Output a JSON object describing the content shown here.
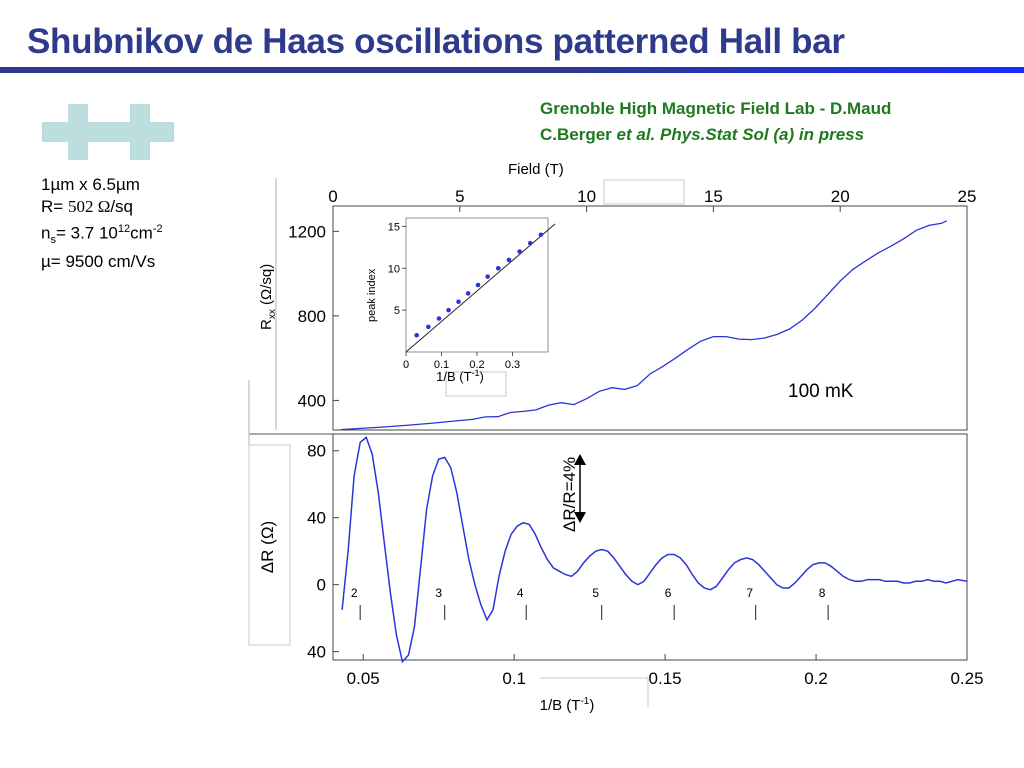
{
  "slide": {
    "title": "Shubnikov de Haas oscillations patterned Hall bar",
    "reference_line1": "Grenoble High Magnetic Field Lab - D.Maud",
    "reference_line2_plain": "C.Berger ",
    "reference_line2_italic": "et al. Phys.Stat Sol (a) in press",
    "accent_color": "#2e3a8c",
    "reference_color": "#1f7a1f"
  },
  "sample": {
    "size": "1µm x 6.5µm",
    "resistance_prefix": "R= ",
    "resistance_value": "502 Ω",
    "resistance_unit": "/sq",
    "density_label_main": "n",
    "density_label_sub": "s",
    "density_value": "= 3.7 10",
    "density_exp": "12",
    "density_unit": "cm",
    "density_unit_exp": "-2",
    "mobility": "µ= 9500 cm/Vs"
  },
  "chart_data": [
    {
      "name": "top",
      "type": "line",
      "xlabel": "Field (T)",
      "ylabel": "Rxx (Ω/sq)",
      "xlim": [
        0,
        25
      ],
      "ylim": [
        260,
        1320
      ],
      "xticks": [
        0,
        5,
        10,
        15,
        20,
        25
      ],
      "yticks": [
        400,
        800,
        1200
      ],
      "annotation": "100 mK",
      "series": [
        {
          "color": "#2a35d8",
          "points": [
            [
              0.3,
              262
            ],
            [
              1,
              267
            ],
            [
              2,
              274
            ],
            [
              3,
              283
            ],
            [
              4,
              293
            ],
            [
              5,
              305
            ],
            [
              5.5,
              310
            ],
            [
              6,
              322
            ],
            [
              6.5,
              323
            ],
            [
              7,
              343
            ],
            [
              7.5,
              348
            ],
            [
              8,
              355
            ],
            [
              8.5,
              378
            ],
            [
              9,
              389
            ],
            [
              9.5,
              380
            ],
            [
              10,
              408
            ],
            [
              10.5,
              443
            ],
            [
              11,
              460
            ],
            [
              11.5,
              452
            ],
            [
              12,
              470
            ],
            [
              12.5,
              525
            ],
            [
              13,
              560
            ],
            [
              13.5,
              600
            ],
            [
              14,
              642
            ],
            [
              14.5,
              680
            ],
            [
              15,
              702
            ],
            [
              15.5,
              702
            ],
            [
              16,
              690
            ],
            [
              16.5,
              688
            ],
            [
              17,
              695
            ],
            [
              17.5,
              712
            ],
            [
              18,
              738
            ],
            [
              18.5,
              780
            ],
            [
              19,
              835
            ],
            [
              19.5,
              900
            ],
            [
              20,
              965
            ],
            [
              20.5,
              1020
            ],
            [
              21,
              1060
            ],
            [
              21.5,
              1098
            ],
            [
              22,
              1130
            ],
            [
              22.5,
              1165
            ],
            [
              23,
              1205
            ],
            [
              23.5,
              1228
            ],
            [
              24,
              1238
            ],
            [
              24.2,
              1250
            ]
          ]
        }
      ]
    },
    {
      "name": "inset",
      "type": "scatter",
      "xlabel": "1/B (T",
      "xlabel_exp": "-1",
      "xlabel_close": ")",
      "ylabel": "peak index",
      "xlim": [
        0,
        0.4
      ],
      "ylim": [
        0,
        16
      ],
      "xticks": [
        0,
        0.1,
        0.2,
        0.3
      ],
      "xtick_labels": [
        "0",
        "0.1",
        "0.2",
        "0.3"
      ],
      "yticks": [
        5,
        10,
        15
      ],
      "series": [
        {
          "points": [
            [
              0.03,
              2
            ],
            [
              0.063,
              3
            ],
            [
              0.093,
              4
            ],
            [
              0.12,
              5
            ],
            [
              0.148,
              6
            ],
            [
              0.175,
              7
            ],
            [
              0.203,
              8
            ],
            [
              0.23,
              9
            ],
            [
              0.26,
              10
            ],
            [
              0.29,
              11
            ],
            [
              0.32,
              12
            ],
            [
              0.35,
              13
            ],
            [
              0.38,
              14
            ],
            [
              0.41,
              15
            ]
          ]
        }
      ],
      "fit": [
        [
          0,
          0
        ],
        [
          0.42,
          15.3
        ]
      ]
    },
    {
      "name": "bottom",
      "type": "line",
      "xlabel": "1/B (T",
      "xlabel_exp": "-1",
      "xlabel_close": ")",
      "ylabel": "ΔR (Ω)",
      "xlim": [
        0.04,
        0.25
      ],
      "ylim": [
        -45,
        90
      ],
      "xticks": [
        0.05,
        0.1,
        0.15,
        0.2,
        0.25
      ],
      "xtick_labels": [
        "0.05",
        "0.1",
        "0.15",
        "0.2",
        "0.25"
      ],
      "yticks": [
        80,
        40,
        0,
        -40
      ],
      "ytick_labels": [
        "80",
        "40",
        "0",
        "40"
      ],
      "scale_annotation": "ΔR/R=4%",
      "peak_labels": [
        {
          "label": "2",
          "x": 0.049
        },
        {
          "label": "3",
          "x": 0.077
        },
        {
          "label": "4",
          "x": 0.104
        },
        {
          "label": "5",
          "x": 0.129
        },
        {
          "label": "6",
          "x": 0.153
        },
        {
          "label": "7",
          "x": 0.18
        },
        {
          "label": "8",
          "x": 0.204
        }
      ],
      "series": [
        {
          "color": "#2a35d8",
          "points": [
            [
              0.043,
              -15
            ],
            [
              0.045,
              20
            ],
            [
              0.047,
              65
            ],
            [
              0.049,
              85
            ],
            [
              0.051,
              88
            ],
            [
              0.053,
              78
            ],
            [
              0.055,
              55
            ],
            [
              0.057,
              25
            ],
            [
              0.059,
              -5
            ],
            [
              0.061,
              -30
            ],
            [
              0.063,
              -46
            ],
            [
              0.065,
              -42
            ],
            [
              0.067,
              -25
            ],
            [
              0.069,
              10
            ],
            [
              0.071,
              45
            ],
            [
              0.073,
              65
            ],
            [
              0.075,
              75
            ],
            [
              0.077,
              76
            ],
            [
              0.079,
              70
            ],
            [
              0.081,
              55
            ],
            [
              0.083,
              35
            ],
            [
              0.085,
              15
            ],
            [
              0.087,
              0
            ],
            [
              0.089,
              -12
            ],
            [
              0.091,
              -21
            ],
            [
              0.093,
              -15
            ],
            [
              0.095,
              5
            ],
            [
              0.097,
              20
            ],
            [
              0.099,
              30
            ],
            [
              0.101,
              35
            ],
            [
              0.103,
              37
            ],
            [
              0.105,
              36
            ],
            [
              0.107,
              30
            ],
            [
              0.109,
              22
            ],
            [
              0.111,
              15
            ],
            [
              0.113,
              10
            ],
            [
              0.115,
              8
            ],
            [
              0.117,
              6
            ],
            [
              0.119,
              5
            ],
            [
              0.121,
              8
            ],
            [
              0.123,
              13
            ],
            [
              0.125,
              17
            ],
            [
              0.127,
              20
            ],
            [
              0.129,
              21
            ],
            [
              0.131,
              20
            ],
            [
              0.133,
              16
            ],
            [
              0.135,
              11
            ],
            [
              0.137,
              6
            ],
            [
              0.139,
              2
            ],
            [
              0.141,
              0
            ],
            [
              0.143,
              2
            ],
            [
              0.145,
              7
            ],
            [
              0.147,
              12
            ],
            [
              0.149,
              16
            ],
            [
              0.151,
              18
            ],
            [
              0.153,
              18
            ],
            [
              0.155,
              16
            ],
            [
              0.157,
              12
            ],
            [
              0.159,
              6
            ],
            [
              0.161,
              1
            ],
            [
              0.163,
              -2
            ],
            [
              0.165,
              -3
            ],
            [
              0.167,
              -1
            ],
            [
              0.169,
              4
            ],
            [
              0.171,
              9
            ],
            [
              0.173,
              13
            ],
            [
              0.175,
              15
            ],
            [
              0.177,
              16
            ],
            [
              0.179,
              15
            ],
            [
              0.181,
              12
            ],
            [
              0.183,
              8
            ],
            [
              0.185,
              4
            ],
            [
              0.187,
              0
            ],
            [
              0.189,
              -2
            ],
            [
              0.191,
              -2
            ],
            [
              0.193,
              1
            ],
            [
              0.195,
              5
            ],
            [
              0.197,
              9
            ],
            [
              0.199,
              12
            ],
            [
              0.201,
              13
            ],
            [
              0.203,
              13
            ],
            [
              0.205,
              11
            ],
            [
              0.207,
              8
            ],
            [
              0.209,
              5
            ],
            [
              0.211,
              3
            ],
            [
              0.213,
              2
            ],
            [
              0.215,
              2
            ],
            [
              0.217,
              3
            ],
            [
              0.219,
              3
            ],
            [
              0.221,
              3
            ],
            [
              0.223,
              2
            ],
            [
              0.225,
              2
            ],
            [
              0.227,
              2
            ],
            [
              0.229,
              1
            ],
            [
              0.231,
              1
            ],
            [
              0.233,
              2
            ],
            [
              0.235,
              2
            ],
            [
              0.237,
              3
            ],
            [
              0.239,
              2
            ],
            [
              0.241,
              2
            ],
            [
              0.243,
              1
            ],
            [
              0.245,
              2
            ],
            [
              0.247,
              3
            ],
            [
              0.25,
              2
            ]
          ]
        }
      ]
    }
  ]
}
